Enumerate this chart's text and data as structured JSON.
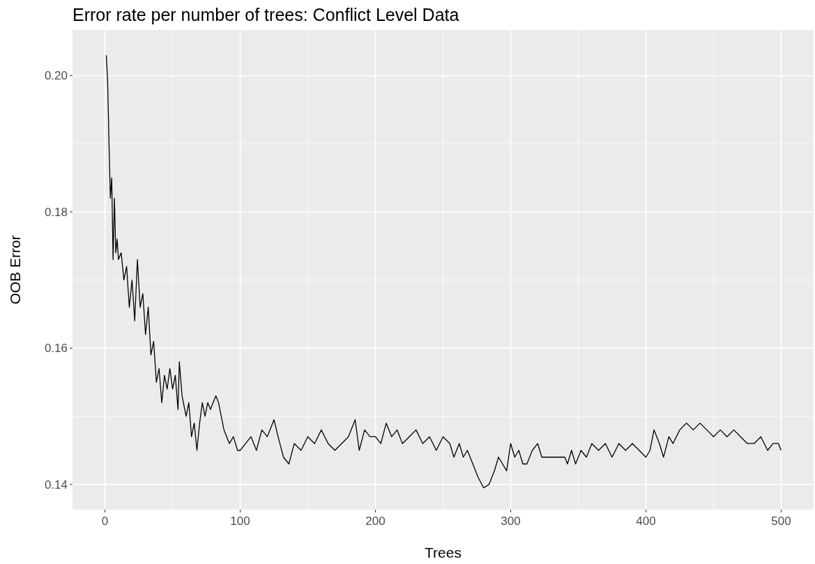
{
  "chart_data": {
    "type": "line",
    "title": "Error rate per number of trees: Conflict Level Data",
    "xlabel": "Trees",
    "ylabel": "OOB Error",
    "xlim": [
      -24,
      524
    ],
    "xticks": [
      0,
      100,
      200,
      300,
      400,
      500
    ],
    "ylim": [
      0.1363,
      0.2067
    ],
    "yticks": [
      {
        "value": 0.14,
        "label": "0.14"
      },
      {
        "value": 0.16,
        "label": "0.16"
      },
      {
        "value": 0.18,
        "label": "0.18"
      },
      {
        "value": 0.2,
        "label": "0.20"
      }
    ],
    "grid": true,
    "series": [
      {
        "color": "#000000",
        "x": [
          1,
          2,
          3,
          4,
          5,
          6,
          7,
          8,
          9,
          10,
          12,
          14,
          16,
          18,
          20,
          22,
          24,
          26,
          28,
          30,
          32,
          34,
          36,
          38,
          40,
          42,
          44,
          46,
          48,
          50,
          52,
          54,
          55,
          57,
          60,
          62,
          64,
          66,
          68,
          70,
          72,
          74,
          76,
          78,
          80,
          82,
          84,
          86,
          88,
          90,
          92,
          95,
          98,
          100,
          104,
          108,
          112,
          116,
          120,
          125,
          128,
          132,
          136,
          140,
          145,
          150,
          155,
          160,
          165,
          170,
          175,
          180,
          185,
          188,
          192,
          196,
          200,
          204,
          208,
          212,
          216,
          220,
          225,
          230,
          235,
          240,
          245,
          250,
          255,
          258,
          262,
          265,
          268,
          272,
          276,
          280,
          284,
          288,
          291,
          294,
          297,
          300,
          303,
          306,
          309,
          312,
          316,
          320,
          323,
          330,
          340,
          342,
          345,
          348,
          352,
          356,
          360,
          365,
          370,
          375,
          380,
          385,
          390,
          395,
          400,
          403,
          406,
          410,
          413,
          417,
          420,
          425,
          430,
          435,
          440,
          445,
          450,
          455,
          460,
          465,
          470,
          475,
          480,
          485,
          490,
          494,
          498,
          500
        ],
        "values": [
          0.203,
          0.199,
          0.19,
          0.182,
          0.185,
          0.173,
          0.182,
          0.174,
          0.176,
          0.173,
          0.174,
          0.17,
          0.172,
          0.166,
          0.17,
          0.164,
          0.173,
          0.166,
          0.168,
          0.162,
          0.166,
          0.159,
          0.161,
          0.155,
          0.157,
          0.152,
          0.156,
          0.154,
          0.157,
          0.154,
          0.156,
          0.151,
          0.158,
          0.153,
          0.15,
          0.152,
          0.147,
          0.149,
          0.145,
          0.149,
          0.152,
          0.15,
          0.152,
          0.151,
          0.152,
          0.153,
          0.152,
          0.15,
          0.148,
          0.147,
          0.146,
          0.147,
          0.145,
          0.145,
          0.146,
          0.147,
          0.145,
          0.148,
          0.147,
          0.1495,
          0.147,
          0.144,
          0.143,
          0.146,
          0.145,
          0.147,
          0.146,
          0.148,
          0.146,
          0.145,
          0.146,
          0.147,
          0.1495,
          0.145,
          0.148,
          0.147,
          0.147,
          0.146,
          0.149,
          0.147,
          0.148,
          0.146,
          0.147,
          0.148,
          0.146,
          0.147,
          0.145,
          0.147,
          0.146,
          0.144,
          0.146,
          0.144,
          0.145,
          0.143,
          0.141,
          0.1395,
          0.14,
          0.142,
          0.144,
          0.143,
          0.142,
          0.146,
          0.144,
          0.145,
          0.143,
          0.143,
          0.145,
          0.146,
          0.144,
          0.144,
          0.144,
          0.143,
          0.145,
          0.143,
          0.145,
          0.144,
          0.146,
          0.145,
          0.146,
          0.144,
          0.146,
          0.145,
          0.146,
          0.145,
          0.144,
          0.145,
          0.148,
          0.146,
          0.144,
          0.147,
          0.146,
          0.148,
          0.149,
          0.148,
          0.149,
          0.148,
          0.147,
          0.148,
          0.147,
          0.148,
          0.147,
          0.146,
          0.146,
          0.147,
          0.145,
          0.146,
          0.146,
          0.145
        ]
      }
    ]
  }
}
